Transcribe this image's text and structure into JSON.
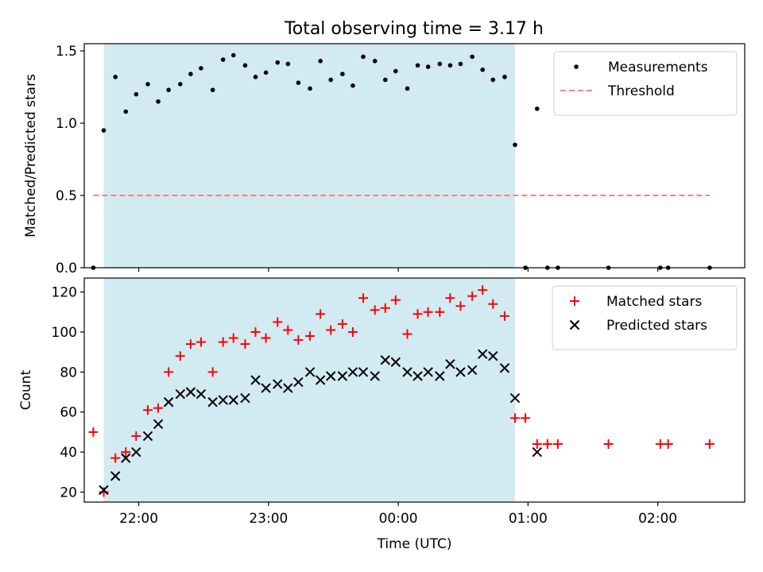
{
  "title": "Total observing time = 3.17 h",
  "colors": {
    "shade": "#add8e6",
    "threshold": "#ff7f7f",
    "measurement": "#000000",
    "matched": "#ff0000",
    "predicted": "#000000"
  },
  "chart_data": [
    {
      "type": "scatter",
      "panel": "top",
      "ylabel": "Matched/Predicted stars",
      "xlabel": "",
      "xlim_hours": [
        21.58,
        26.67
      ],
      "ylim": [
        0,
        1.55
      ],
      "yticks": [
        0,
        0.5,
        1.0,
        1.5
      ],
      "ytick_labels": [
        "0.0",
        "0.5",
        "1.0",
        "1.5"
      ],
      "shaded_interval_hours": [
        21.73,
        24.9
      ],
      "legend_position": "upper right",
      "series": [
        {
          "name": "Measurements",
          "marker": "dot",
          "points": [
            [
              21.65,
              0.0
            ],
            [
              21.73,
              0.95
            ],
            [
              21.82,
              1.32
            ],
            [
              21.9,
              1.08
            ],
            [
              21.98,
              1.2
            ],
            [
              22.07,
              1.27
            ],
            [
              22.15,
              1.15
            ],
            [
              22.23,
              1.23
            ],
            [
              22.32,
              1.27
            ],
            [
              22.4,
              1.34
            ],
            [
              22.48,
              1.38
            ],
            [
              22.57,
              1.23
            ],
            [
              22.65,
              1.44
            ],
            [
              22.73,
              1.47
            ],
            [
              22.82,
              1.4
            ],
            [
              22.9,
              1.32
            ],
            [
              22.98,
              1.35
            ],
            [
              23.07,
              1.42
            ],
            [
              23.15,
              1.41
            ],
            [
              23.23,
              1.28
            ],
            [
              23.32,
              1.24
            ],
            [
              23.4,
              1.43
            ],
            [
              23.48,
              1.3
            ],
            [
              23.57,
              1.34
            ],
            [
              23.65,
              1.26
            ],
            [
              23.73,
              1.46
            ],
            [
              23.82,
              1.43
            ],
            [
              23.9,
              1.3
            ],
            [
              23.98,
              1.36
            ],
            [
              24.07,
              1.24
            ],
            [
              24.15,
              1.4
            ],
            [
              24.23,
              1.39
            ],
            [
              24.32,
              1.41
            ],
            [
              24.4,
              1.4
            ],
            [
              24.48,
              1.41
            ],
            [
              24.57,
              1.46
            ],
            [
              24.65,
              1.37
            ],
            [
              24.73,
              1.3
            ],
            [
              24.82,
              1.32
            ],
            [
              24.9,
              0.85
            ],
            [
              24.98,
              0.0
            ],
            [
              25.07,
              1.1
            ],
            [
              25.15,
              0.0
            ],
            [
              25.23,
              0.0
            ],
            [
              25.62,
              0.0
            ],
            [
              26.02,
              0.0
            ],
            [
              26.08,
              0.0
            ],
            [
              26.4,
              0.0
            ]
          ]
        },
        {
          "name": "Threshold",
          "style": "dashed-line",
          "points": [
            [
              21.65,
              0.5
            ],
            [
              26.4,
              0.5
            ]
          ]
        }
      ]
    },
    {
      "type": "scatter",
      "panel": "bottom",
      "ylabel": "Count",
      "xlabel": "Time (UTC)",
      "xlim_hours": [
        21.58,
        26.67
      ],
      "ylim": [
        15,
        127
      ],
      "yticks": [
        20,
        40,
        60,
        80,
        100,
        120
      ],
      "ytick_labels": [
        "20",
        "40",
        "60",
        "80",
        "100",
        "120"
      ],
      "xticks_hours": [
        22,
        23,
        24,
        25,
        26
      ],
      "xtick_labels": [
        "22:00",
        "23:00",
        "00:00",
        "01:00",
        "02:00"
      ],
      "shaded_interval_hours": [
        21.73,
        24.9
      ],
      "legend_position": "upper right",
      "series": [
        {
          "name": "Matched stars",
          "marker": "plus",
          "points": [
            [
              21.65,
              50
            ],
            [
              21.73,
              20
            ],
            [
              21.82,
              37
            ],
            [
              21.9,
              40
            ],
            [
              21.98,
              48
            ],
            [
              22.07,
              61
            ],
            [
              22.15,
              62
            ],
            [
              22.23,
              80
            ],
            [
              22.32,
              88
            ],
            [
              22.4,
              94
            ],
            [
              22.48,
              95
            ],
            [
              22.57,
              80
            ],
            [
              22.65,
              95
            ],
            [
              22.73,
              97
            ],
            [
              22.82,
              94
            ],
            [
              22.9,
              100
            ],
            [
              22.98,
              97
            ],
            [
              23.07,
              105
            ],
            [
              23.15,
              101
            ],
            [
              23.23,
              96
            ],
            [
              23.32,
              98
            ],
            [
              23.4,
              109
            ],
            [
              23.48,
              101
            ],
            [
              23.57,
              104
            ],
            [
              23.65,
              100
            ],
            [
              23.73,
              117
            ],
            [
              23.82,
              111
            ],
            [
              23.9,
              112
            ],
            [
              23.98,
              116
            ],
            [
              24.07,
              99
            ],
            [
              24.15,
              109
            ],
            [
              24.23,
              110
            ],
            [
              24.32,
              110
            ],
            [
              24.4,
              117
            ],
            [
              24.48,
              113
            ],
            [
              24.57,
              118
            ],
            [
              24.65,
              121
            ],
            [
              24.73,
              114
            ],
            [
              24.82,
              108
            ],
            [
              24.9,
              57
            ],
            [
              24.98,
              57
            ],
            [
              25.07,
              44
            ],
            [
              25.15,
              44
            ],
            [
              25.23,
              44
            ],
            [
              25.62,
              44
            ],
            [
              26.02,
              44
            ],
            [
              26.08,
              44
            ],
            [
              26.4,
              44
            ]
          ]
        },
        {
          "name": "Predicted stars",
          "marker": "x",
          "points": [
            [
              21.73,
              21
            ],
            [
              21.82,
              28
            ],
            [
              21.9,
              37
            ],
            [
              21.98,
              40
            ],
            [
              22.07,
              48
            ],
            [
              22.15,
              54
            ],
            [
              22.23,
              65
            ],
            [
              22.32,
              69
            ],
            [
              22.4,
              70
            ],
            [
              22.48,
              69
            ],
            [
              22.57,
              65
            ],
            [
              22.65,
              66
            ],
            [
              22.73,
              66
            ],
            [
              22.82,
              67
            ],
            [
              22.9,
              76
            ],
            [
              22.98,
              72
            ],
            [
              23.07,
              74
            ],
            [
              23.15,
              72
            ],
            [
              23.23,
              75
            ],
            [
              23.32,
              80
            ],
            [
              23.4,
              76
            ],
            [
              23.48,
              78
            ],
            [
              23.57,
              78
            ],
            [
              23.65,
              80
            ],
            [
              23.73,
              80
            ],
            [
              23.82,
              78
            ],
            [
              23.9,
              86
            ],
            [
              23.98,
              85
            ],
            [
              24.07,
              80
            ],
            [
              24.15,
              78
            ],
            [
              24.23,
              80
            ],
            [
              24.32,
              78
            ],
            [
              24.4,
              84
            ],
            [
              24.48,
              80
            ],
            [
              24.57,
              81
            ],
            [
              24.65,
              89
            ],
            [
              24.73,
              88
            ],
            [
              24.82,
              82
            ],
            [
              24.9,
              67
            ],
            [
              25.07,
              40
            ]
          ]
        }
      ]
    }
  ]
}
